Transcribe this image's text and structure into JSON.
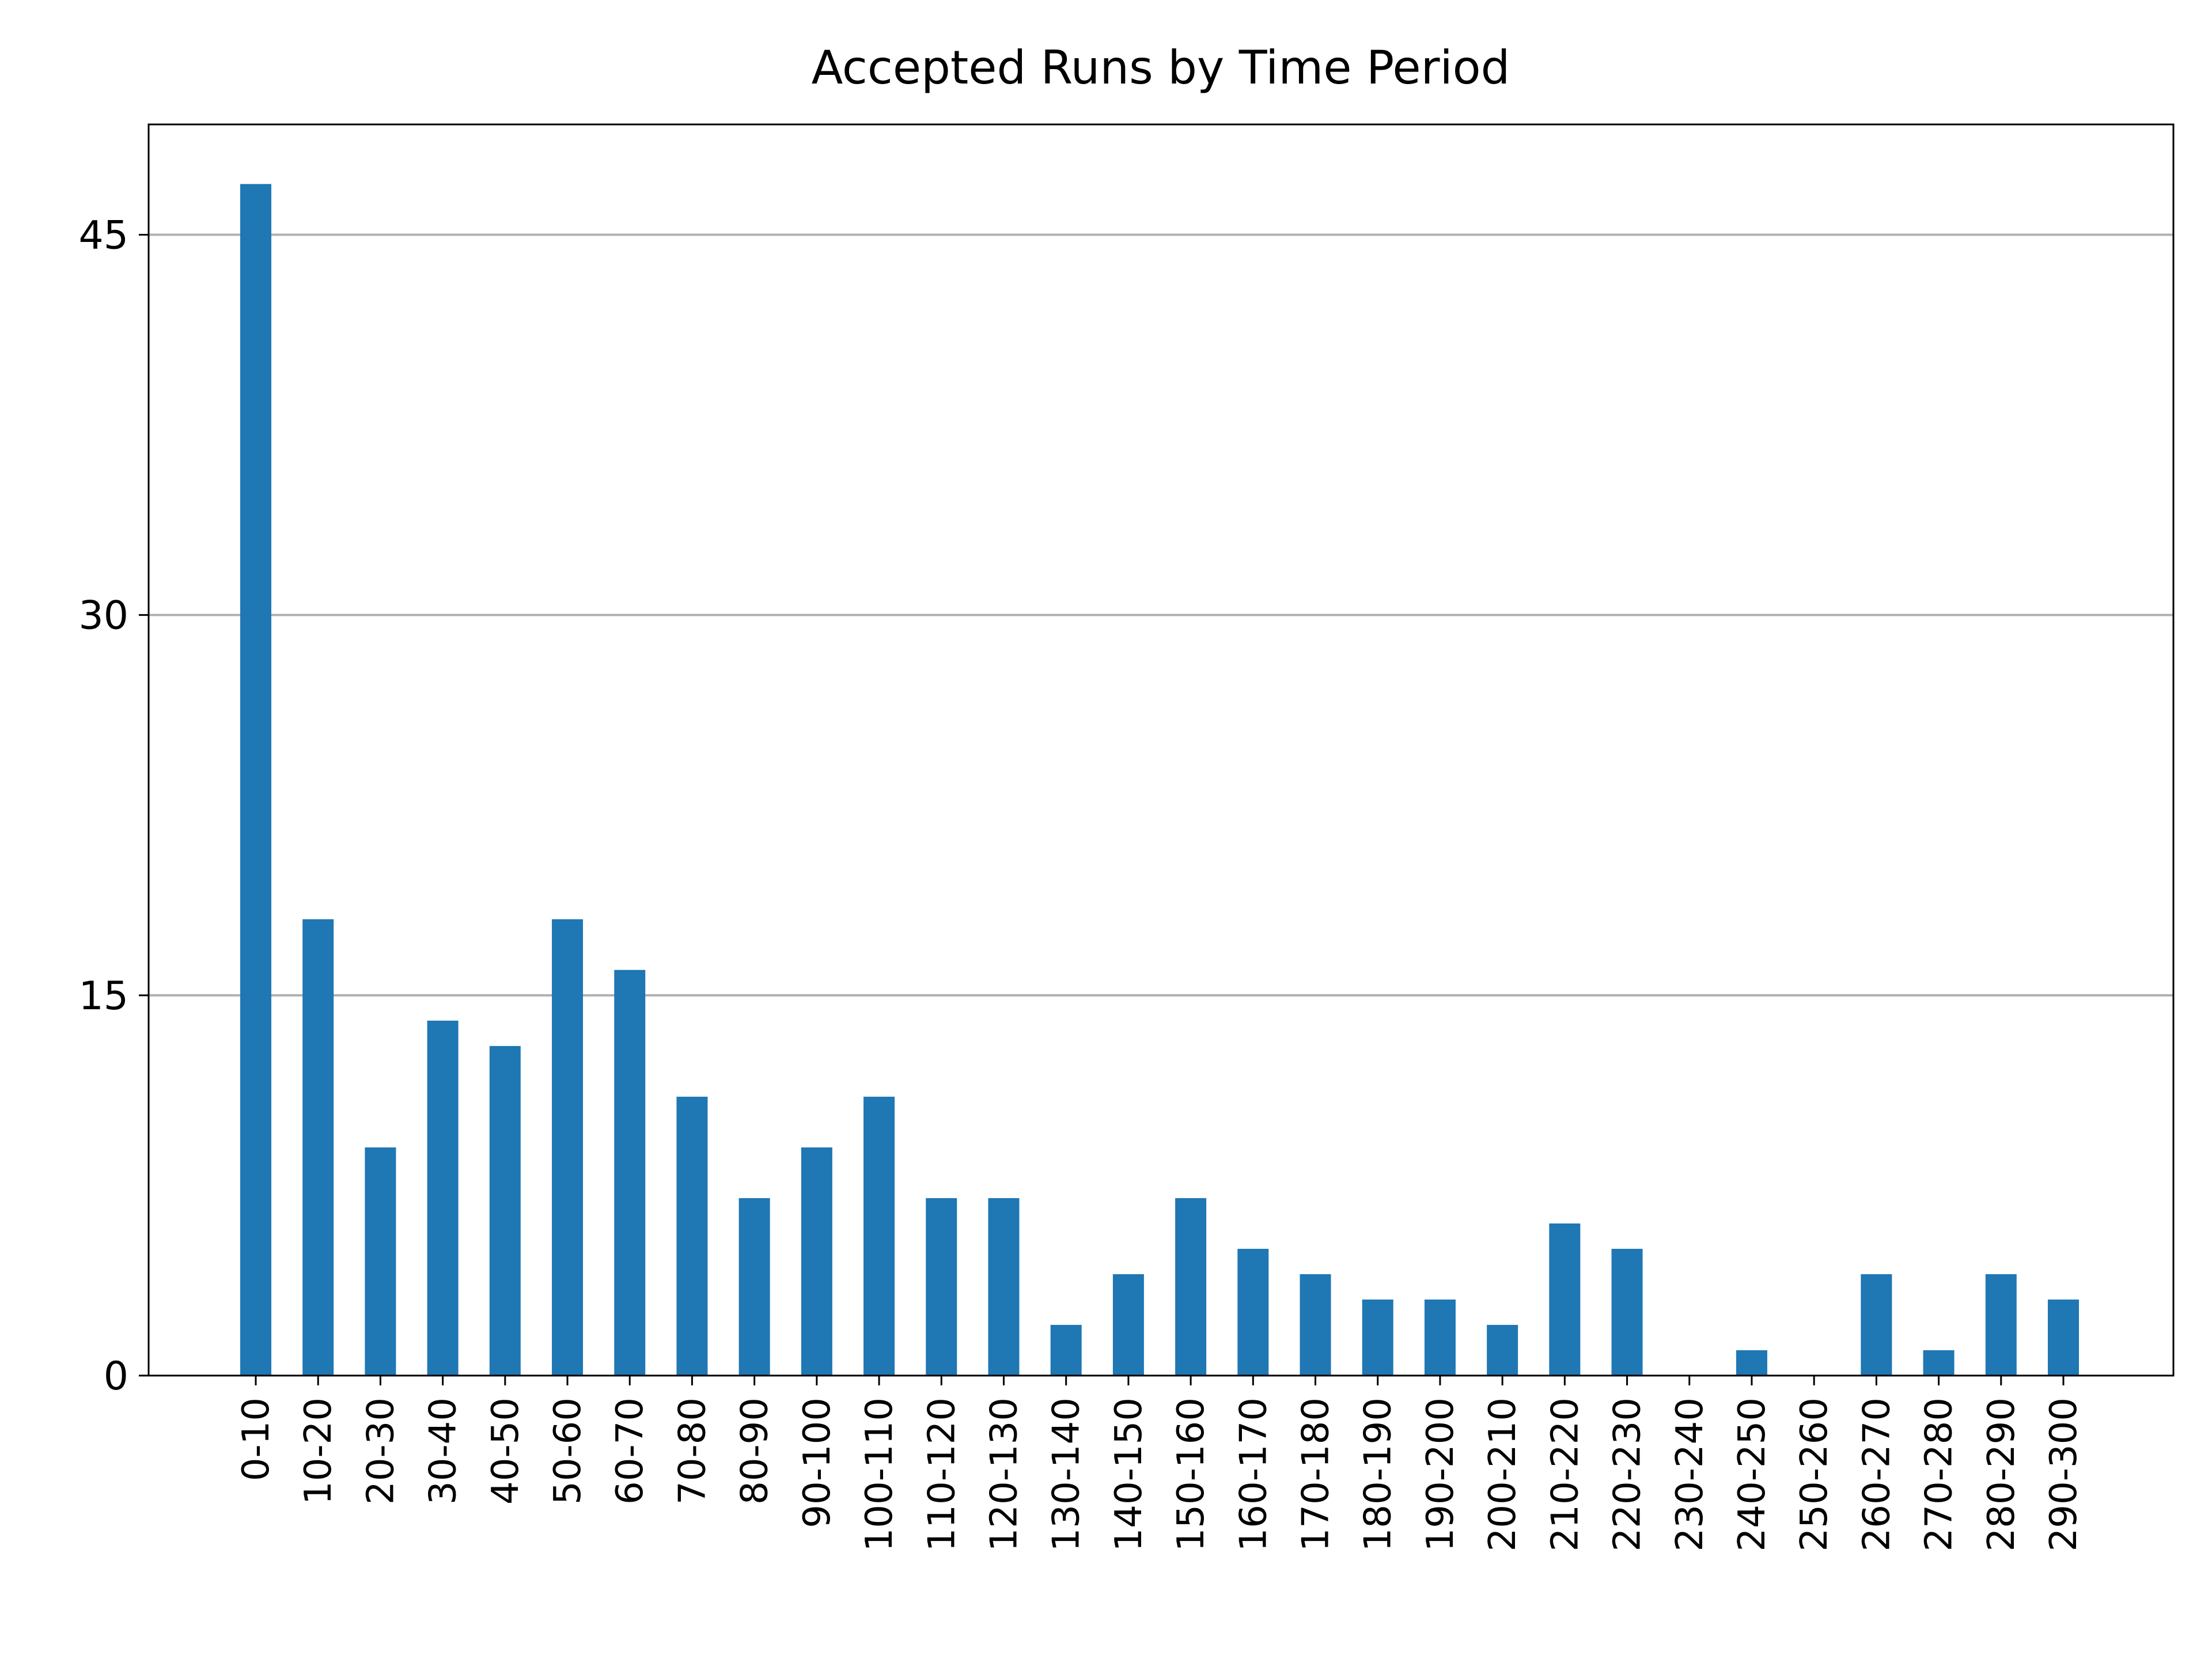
{
  "chart_data": {
    "type": "bar",
    "title": "Accepted Runs by Time Period",
    "xlabel": "",
    "ylabel": "",
    "categories": [
      "0-10",
      "10-20",
      "20-30",
      "30-40",
      "40-50",
      "50-60",
      "60-70",
      "70-80",
      "80-90",
      "90-100",
      "100-110",
      "110-120",
      "120-130",
      "130-140",
      "140-150",
      "150-160",
      "160-170",
      "170-180",
      "180-190",
      "190-200",
      "200-210",
      "210-220",
      "220-230",
      "230-240",
      "240-250",
      "250-260",
      "260-270",
      "270-280",
      "280-290",
      "290-300"
    ],
    "values": [
      47,
      18,
      9,
      14,
      13,
      18,
      16,
      11,
      7,
      9,
      11,
      7,
      7,
      2,
      4,
      7,
      5,
      4,
      3,
      3,
      2,
      6,
      5,
      0,
      1,
      0,
      4,
      1,
      4,
      3
    ],
    "yticks": [
      0,
      15,
      30,
      45
    ],
    "ylim": [
      0,
      49.35
    ],
    "grid": "y",
    "legend": "none",
    "bar_color": "#1f77b4",
    "grid_color": "#b0b0b0"
  }
}
